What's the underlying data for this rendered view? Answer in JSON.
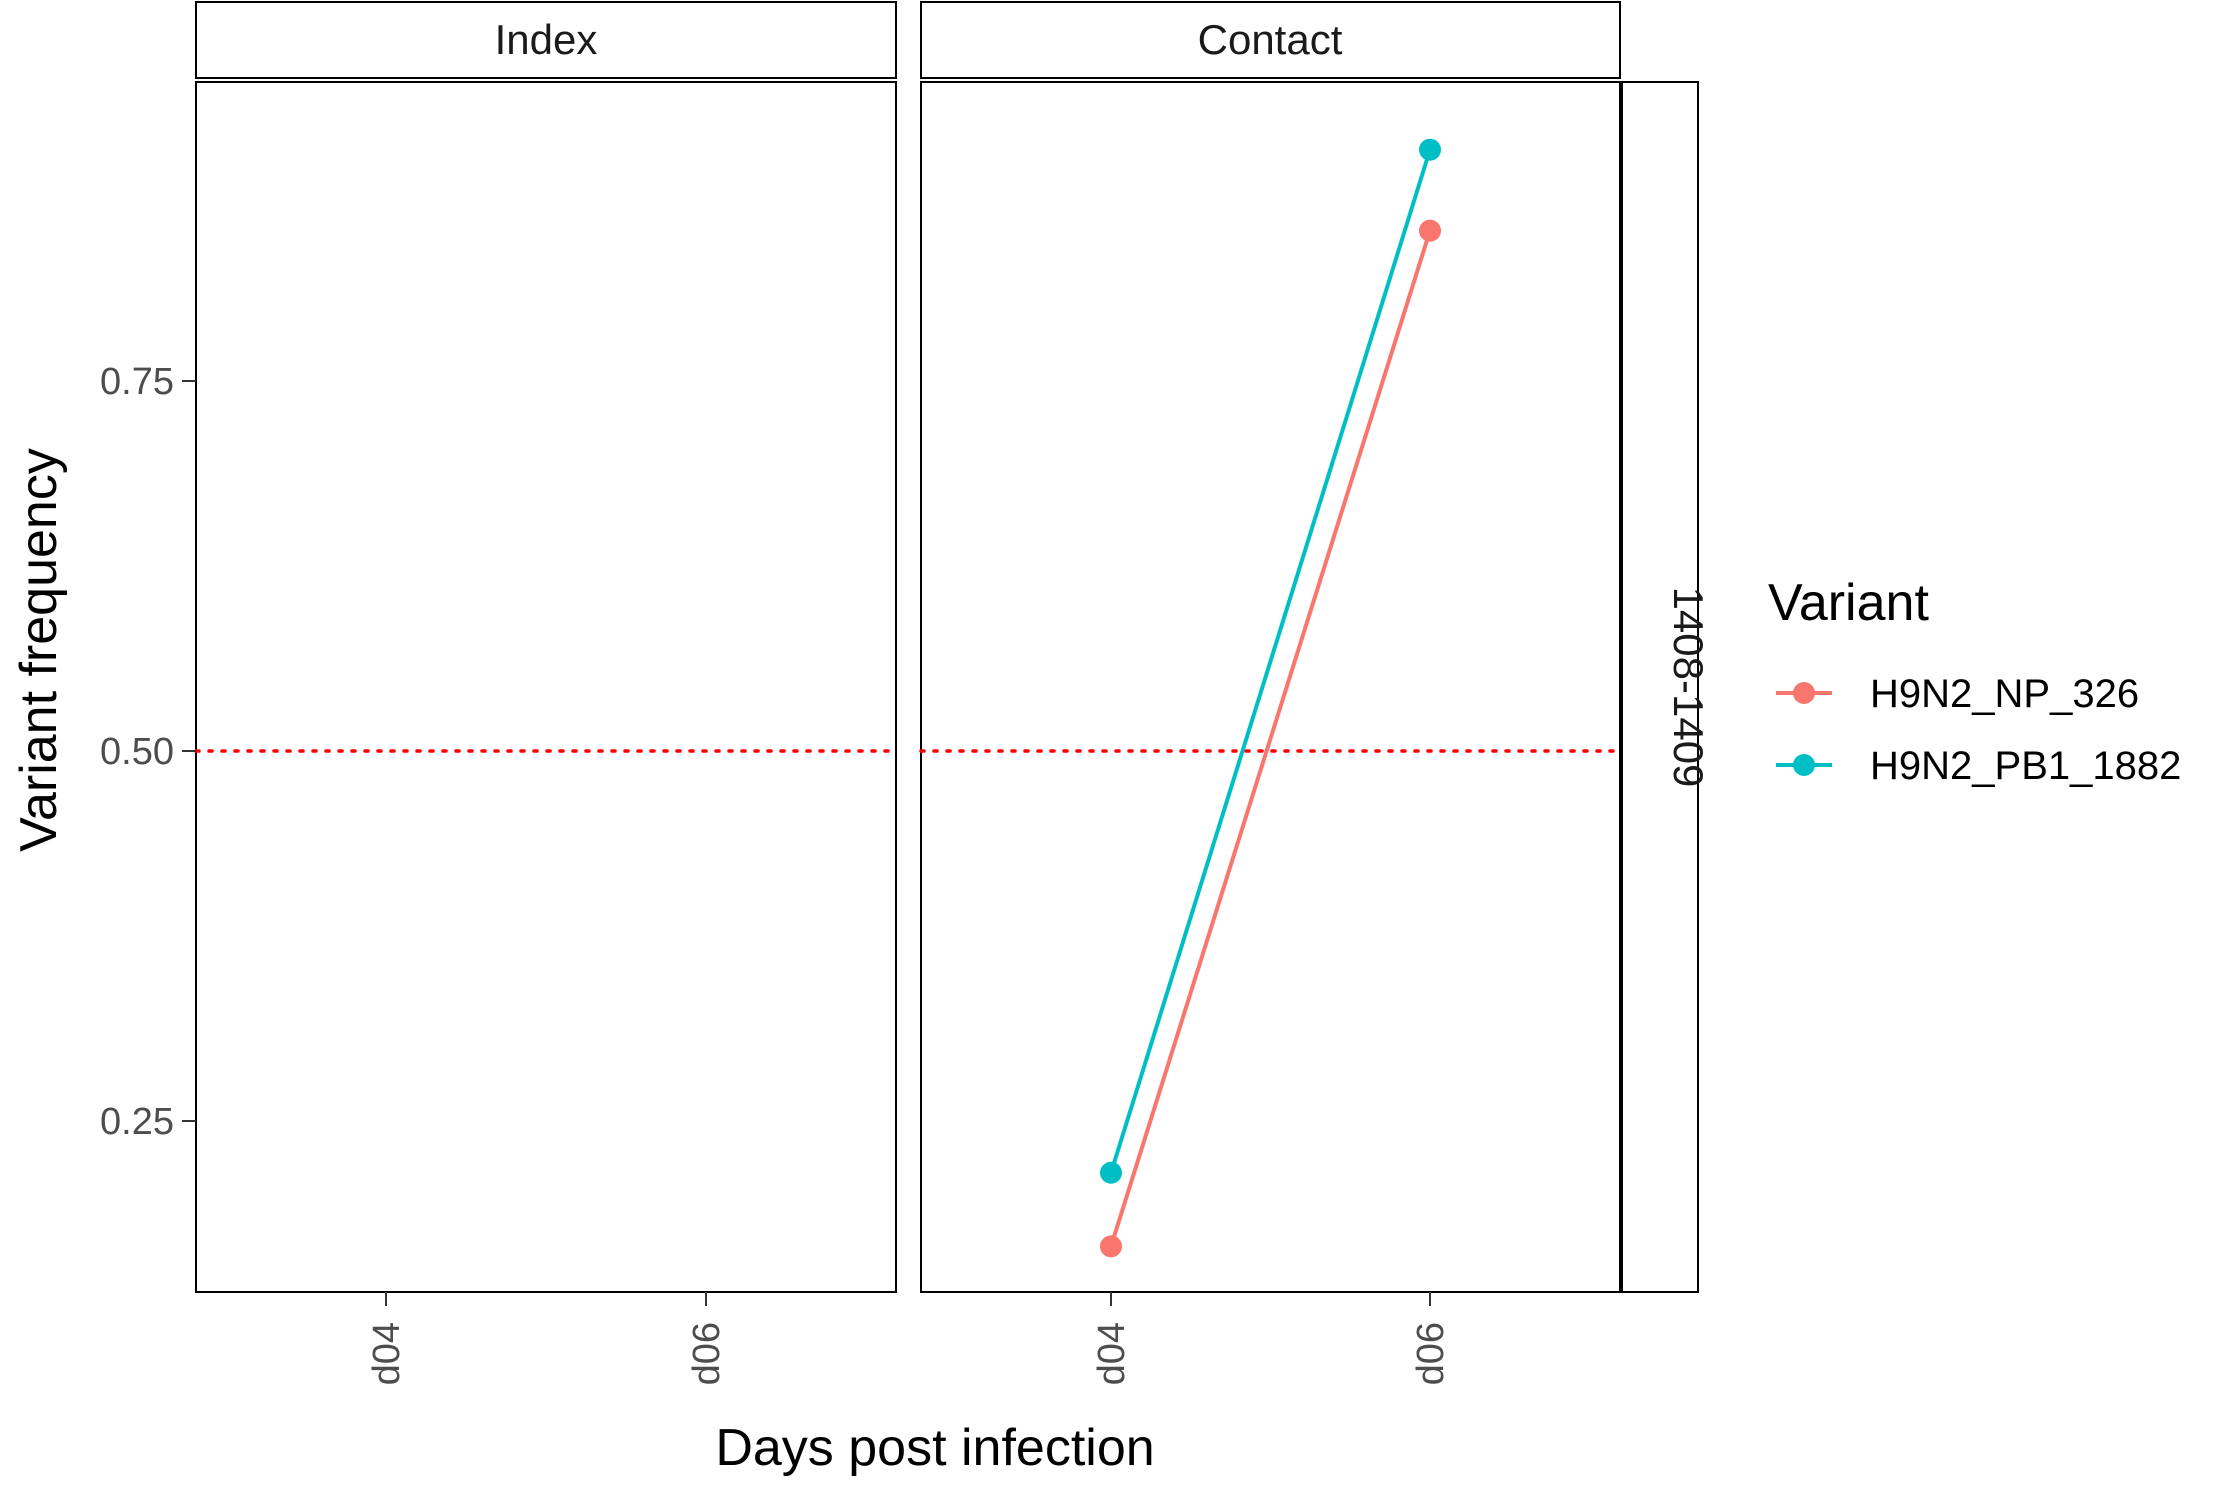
{
  "chart_data": {
    "type": "line",
    "panels": [
      "Index",
      "Contact"
    ],
    "row_facet_label": "1408-1409",
    "x": [
      "d04",
      "d06"
    ],
    "xlabel": "Days post infection",
    "ylabel": "Variant frequency",
    "ylim": [
      0.139,
      0.961
    ],
    "yticks": [
      0.25,
      0.5,
      0.75
    ],
    "ytick_labels": [
      "0.25",
      "0.50",
      "0.75"
    ],
    "reference_line": {
      "y": 0.5,
      "style": "dotted",
      "color": "#ff0000"
    },
    "legend": {
      "title": "Variant",
      "position": "right"
    },
    "series": [
      {
        "name": "H9N2_NP_326",
        "color": "#F8766D",
        "panel": "Contact",
        "values": [
          0.17,
          0.86
        ]
      },
      {
        "name": "H9N2_PB1_1882",
        "color": "#00BFC4",
        "panel": "Contact",
        "values": [
          0.22,
          0.915
        ]
      }
    ],
    "grid": false
  }
}
